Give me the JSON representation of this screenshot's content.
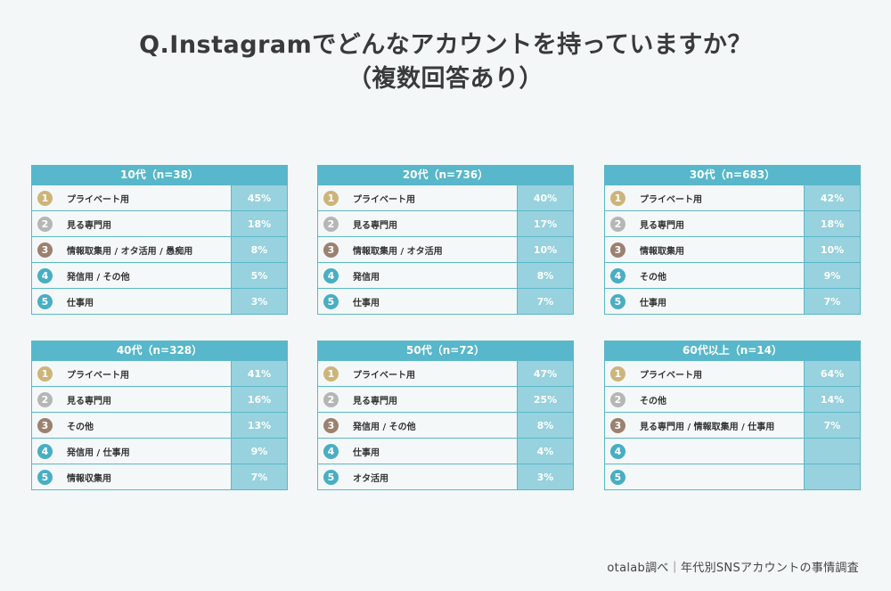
{
  "title": {
    "line1": "Q.Instagramでどんなアカウントを持っていますか？",
    "line2": "（複数回答あり）"
  },
  "panels": [
    {
      "header": "10代（n=38）",
      "rows": [
        {
          "rank": "1",
          "label": "プライベート用",
          "value": "45%"
        },
        {
          "rank": "2",
          "label": "見る専門用",
          "value": "18%"
        },
        {
          "rank": "3",
          "label": "情報取集用 / オタ活用 / 愚痴用",
          "value": "8%"
        },
        {
          "rank": "4",
          "label": "発信用 / その他",
          "value": "5%"
        },
        {
          "rank": "5",
          "label": "仕事用",
          "value": "3%"
        }
      ]
    },
    {
      "header": "20代（n=736）",
      "rows": [
        {
          "rank": "1",
          "label": "プライベート用",
          "value": "40%"
        },
        {
          "rank": "2",
          "label": "見る専門用",
          "value": "17%"
        },
        {
          "rank": "3",
          "label": "情報取集用 / オタ活用",
          "value": "10%"
        },
        {
          "rank": "4",
          "label": "発信用",
          "value": "8%"
        },
        {
          "rank": "5",
          "label": "仕事用",
          "value": "7%"
        }
      ]
    },
    {
      "header": "30代（n=683）",
      "rows": [
        {
          "rank": "1",
          "label": "プライベート用",
          "value": "42%"
        },
        {
          "rank": "2",
          "label": "見る専門用",
          "value": "18%"
        },
        {
          "rank": "3",
          "label": "情報取集用",
          "value": "10%"
        },
        {
          "rank": "4",
          "label": "その他",
          "value": "9%"
        },
        {
          "rank": "5",
          "label": "仕事用",
          "value": "7%"
        }
      ]
    },
    {
      "header": "40代（n=328）",
      "rows": [
        {
          "rank": "1",
          "label": "プライベート用",
          "value": "41%"
        },
        {
          "rank": "2",
          "label": "見る専門用",
          "value": "16%"
        },
        {
          "rank": "3",
          "label": "その他",
          "value": "13%"
        },
        {
          "rank": "4",
          "label": "発信用 / 仕事用",
          "value": "9%"
        },
        {
          "rank": "5",
          "label": "情報収集用",
          "value": "7%"
        }
      ]
    },
    {
      "header": "50代（n=72）",
      "rows": [
        {
          "rank": "1",
          "label": "プライベート用",
          "value": "47%"
        },
        {
          "rank": "2",
          "label": "見る専門用",
          "value": "25%"
        },
        {
          "rank": "3",
          "label": "発信用 / その他",
          "value": "8%"
        },
        {
          "rank": "4",
          "label": "仕事用",
          "value": "4%"
        },
        {
          "rank": "5",
          "label": "オタ活用",
          "value": "3%"
        }
      ]
    },
    {
      "header": "60代以上（n=14）",
      "rows": [
        {
          "rank": "1",
          "label": "プライベート用",
          "value": "64%"
        },
        {
          "rank": "2",
          "label": "その他",
          "value": "14%"
        },
        {
          "rank": "3",
          "label": "見る専門用 / 情報取集用 / 仕事用",
          "value": "7%"
        },
        {
          "rank": "4",
          "label": "",
          "value": ""
        },
        {
          "rank": "5",
          "label": "",
          "value": ""
        }
      ]
    }
  ],
  "footer": "otalab調べ｜年代別SNSアカウントの事情調査"
}
